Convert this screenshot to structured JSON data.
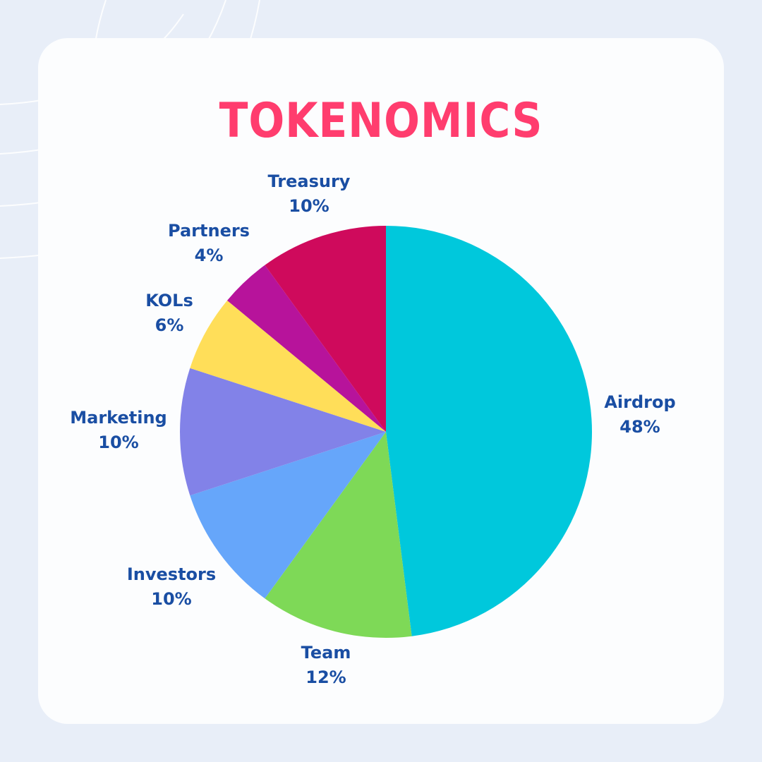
{
  "title": "TOKENOMICS",
  "colors": {
    "title": "#ff3d6e",
    "labels": "#1a4ea3",
    "background": "#e8eef8",
    "card": "#fcfdfe"
  },
  "chart_data": {
    "type": "pie",
    "title": "TOKENOMICS",
    "start": "12 o'clock",
    "direction": "clockwise",
    "slices": [
      {
        "label": "Airdrop",
        "value": 48,
        "display": "48%",
        "color": "#00c8dc"
      },
      {
        "label": "Team",
        "value": 12,
        "display": "12%",
        "color": "#7ed957"
      },
      {
        "label": "Investors",
        "value": 10,
        "display": "10%",
        "color": "#66a6fa"
      },
      {
        "label": "Marketing",
        "value": 10,
        "display": "10%",
        "color": "#8282e8"
      },
      {
        "label": "KOLs",
        "value": 6,
        "display": "6%",
        "color": "#ffde59"
      },
      {
        "label": "Partners",
        "value": 4,
        "display": "4%",
        "color": "#b7139b"
      },
      {
        "label": "Treasury",
        "value": 10,
        "display": "10%",
        "color": "#cf0a5c"
      }
    ]
  }
}
